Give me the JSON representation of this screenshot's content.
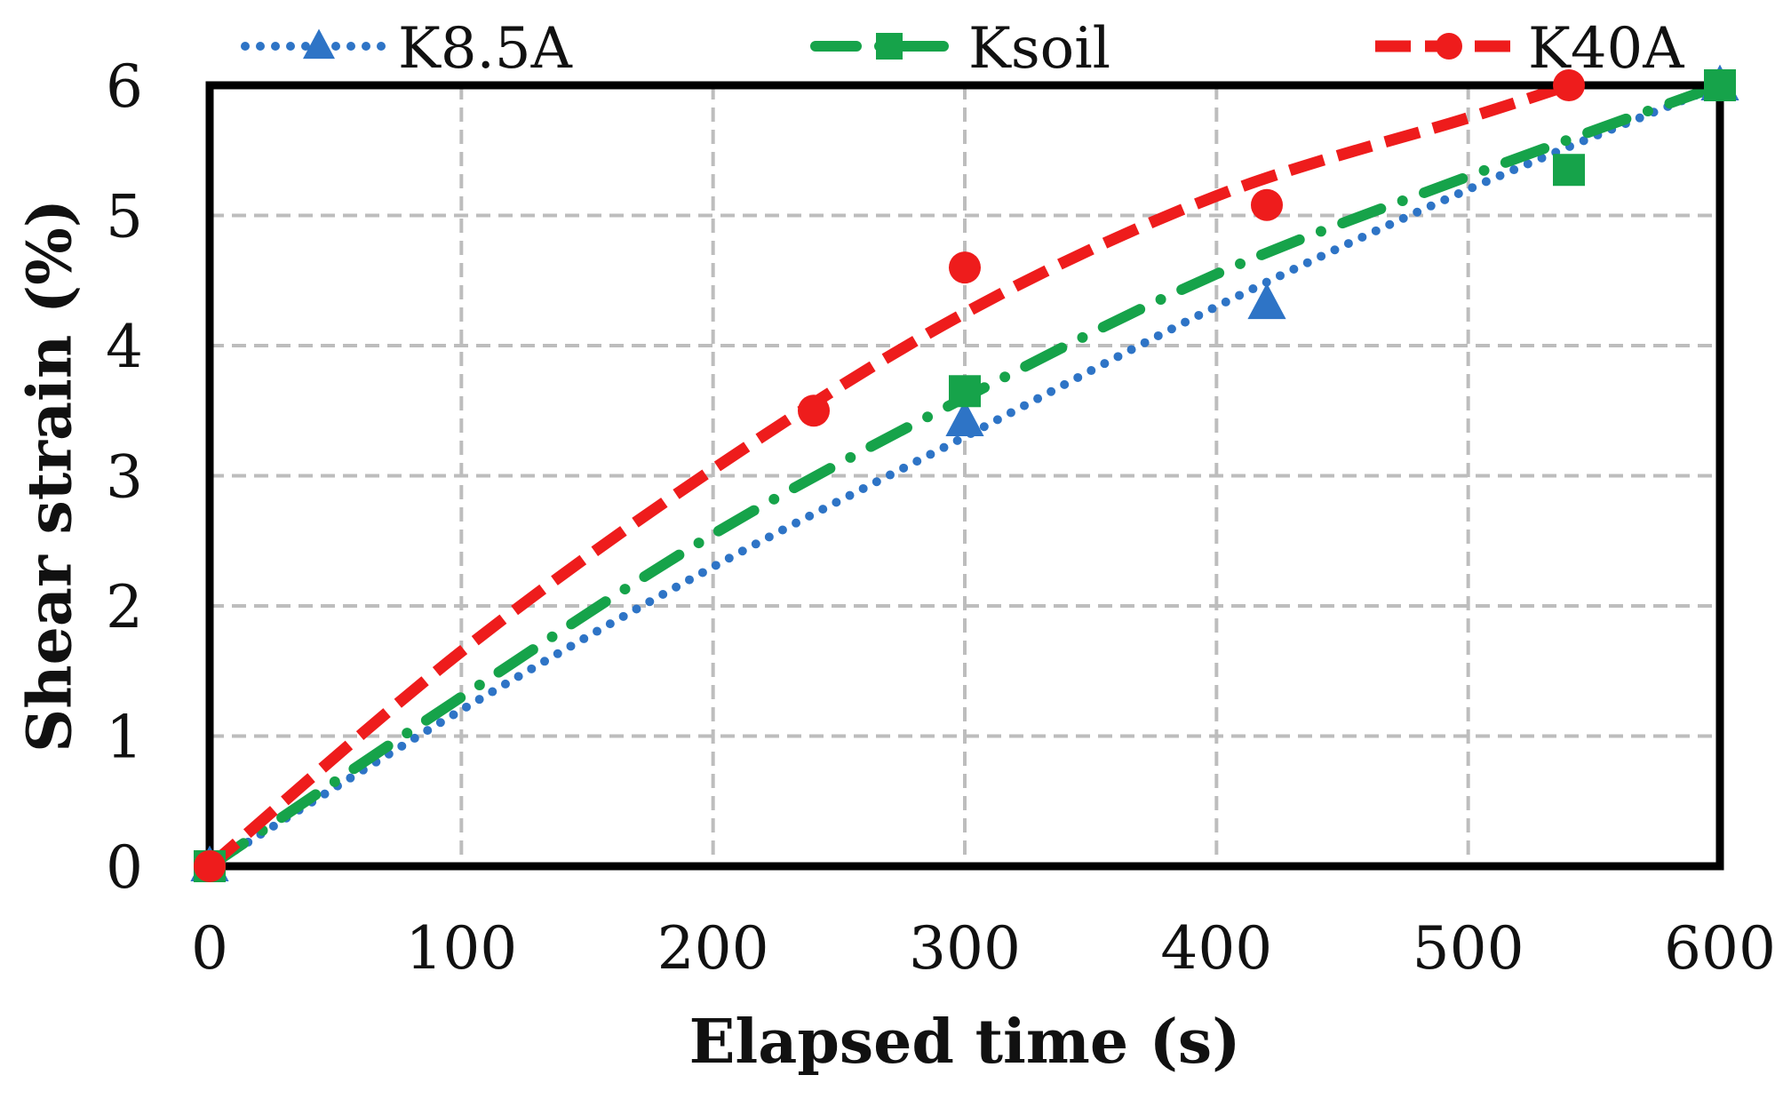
{
  "chart_data": {
    "type": "scatter",
    "title": "",
    "xlabel": "Elapsed time (s)",
    "ylabel": "Shear strain (%)",
    "xlim": [
      0,
      600
    ],
    "ylim": [
      0,
      6
    ],
    "xticks": [
      0,
      100,
      200,
      300,
      400,
      500,
      600
    ],
    "yticks": [
      0,
      1,
      2,
      3,
      4,
      5,
      6
    ],
    "grid": true,
    "legend_position": "top",
    "series": [
      {
        "name": "K8.5A",
        "color": "#2E74C6",
        "marker": "triangle",
        "line_style": "dotted",
        "points": [
          [
            0,
            0
          ],
          [
            300,
            3.42
          ],
          [
            420,
            4.32
          ],
          [
            600,
            6.0
          ]
        ],
        "trendline": [
          [
            0,
            0
          ],
          [
            100,
            1.2
          ],
          [
            200,
            2.3
          ],
          [
            300,
            3.3
          ],
          [
            400,
            4.3
          ],
          [
            500,
            5.2
          ],
          [
            600,
            6.0
          ]
        ]
      },
      {
        "name": "Ksoil",
        "color": "#16A34A",
        "marker": "square",
        "line_style": "dash-dot",
        "points": [
          [
            0,
            0
          ],
          [
            300,
            3.65
          ],
          [
            540,
            5.35
          ],
          [
            600,
            6.0
          ]
        ],
        "trendline": [
          [
            0,
            0
          ],
          [
            100,
            1.3
          ],
          [
            200,
            2.55
          ],
          [
            300,
            3.6
          ],
          [
            400,
            4.55
          ],
          [
            500,
            5.3
          ],
          [
            600,
            6.0
          ]
        ]
      },
      {
        "name": "K40A",
        "color": "#EE1C1C",
        "marker": "circle",
        "line_style": "dashed",
        "points": [
          [
            0,
            0
          ],
          [
            240,
            3.5
          ],
          [
            300,
            4.6
          ],
          [
            420,
            5.08
          ],
          [
            540,
            6.0
          ]
        ],
        "trendline": [
          [
            0,
            0
          ],
          [
            100,
            1.65
          ],
          [
            200,
            3.05
          ],
          [
            300,
            4.25
          ],
          [
            400,
            5.15
          ],
          [
            500,
            5.75
          ],
          [
            540,
            6.0
          ]
        ]
      }
    ]
  }
}
